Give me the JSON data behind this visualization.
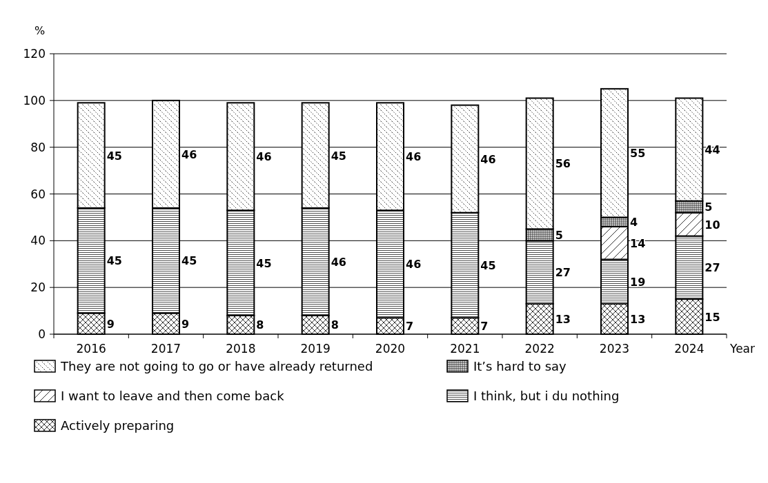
{
  "chart_data": {
    "type": "bar",
    "stacked": true,
    "xlabel": "Year",
    "ylabel": "%",
    "categories": [
      "2016",
      "2017",
      "2018",
      "2019",
      "2020",
      "2021",
      "2022",
      "2023",
      "2024"
    ],
    "series": [
      {
        "name": "Actively preparing",
        "color": "#000000",
        "values": [
          9,
          9,
          8,
          8,
          7,
          7,
          13,
          13,
          15
        ]
      },
      {
        "name": "I think, but i du nothing",
        "color": "#000000",
        "values": [
          45,
          45,
          45,
          46,
          46,
          45,
          27,
          19,
          27
        ]
      },
      {
        "name": "I want to leave and then come back",
        "color": "#000000",
        "values": [
          null,
          null,
          null,
          null,
          null,
          null,
          null,
          14,
          10
        ]
      },
      {
        "name": "It’s hard to say",
        "color": "#000000",
        "values": [
          null,
          null,
          null,
          null,
          null,
          null,
          5,
          4,
          5
        ]
      },
      {
        "name": "They are not going to go or have already returned",
        "color": "#000000",
        "values": [
          45,
          46,
          46,
          45,
          46,
          46,
          56,
          55,
          44
        ]
      }
    ],
    "ylim": [
      0,
      120
    ],
    "yticks": [
      0,
      20,
      40,
      60,
      80,
      100,
      120
    ],
    "grid": "y",
    "legend": "bottom",
    "data_labels": true
  }
}
